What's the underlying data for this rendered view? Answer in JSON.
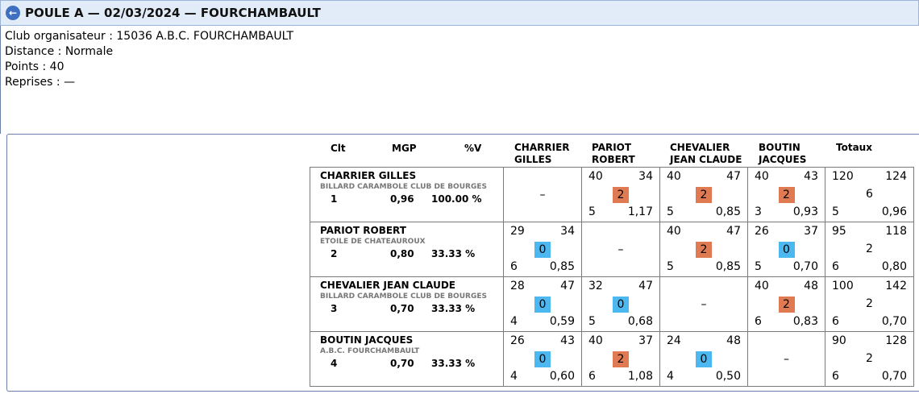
{
  "header": {
    "title": "POULE A — 02/03/2024 — FOURCHAMBAULT",
    "back_icon": "back-arrow-icon"
  },
  "info": {
    "club": "Club organisateur : 15036 A.B.C. FOURCHAMBAULT",
    "distance": "Distance : Normale",
    "points": "Points : 40",
    "reprises": "Reprises : —"
  },
  "columns": {
    "clt": "Clt",
    "mgp": "MGP",
    "pct": "%V",
    "p1_line1": "CHARRIER",
    "p1_line2": "GILLES",
    "p2_line1": "PARIOT",
    "p2_line2": "ROBERT",
    "p3_line1": "CHEVALIER",
    "p3_line2": "JEAN CLAUDE",
    "p4_line1": "BOUTIN",
    "p4_line2": "JACQUES",
    "totaux": "Totaux"
  },
  "dash": "–",
  "rows": [
    {
      "name": "CHARRIER GILLES",
      "club": "BILLARD CARAMBOLE CLUB DE BOURGES",
      "rank": "1",
      "mgp": "0,96",
      "pct": "100.00 %",
      "cells": [
        null,
        {
          "pts": "40",
          "opp": "34",
          "res": "2",
          "type": "win",
          "rep": "5",
          "moy": "1,17"
        },
        {
          "pts": "40",
          "opp": "47",
          "res": "2",
          "type": "win",
          "rep": "5",
          "moy": "0,85"
        },
        {
          "pts": "40",
          "opp": "43",
          "res": "2",
          "type": "win",
          "rep": "3",
          "moy": "0,93"
        }
      ],
      "total": {
        "pts": "120",
        "opp": "124",
        "res": "6",
        "rep": "5",
        "moy": "0,96"
      }
    },
    {
      "name": "PARIOT ROBERT",
      "club": "ETOILE DE CHATEAUROUX",
      "rank": "2",
      "mgp": "0,80",
      "pct": "33.33 %",
      "cells": [
        {
          "pts": "29",
          "opp": "34",
          "res": "0",
          "type": "loss",
          "rep": "6",
          "moy": "0,85"
        },
        null,
        {
          "pts": "40",
          "opp": "47",
          "res": "2",
          "type": "win",
          "rep": "5",
          "moy": "0,85"
        },
        {
          "pts": "26",
          "opp": "37",
          "res": "0",
          "type": "loss",
          "rep": "5",
          "moy": "0,70"
        }
      ],
      "total": {
        "pts": "95",
        "opp": "118",
        "res": "2",
        "rep": "6",
        "moy": "0,80"
      }
    },
    {
      "name": "CHEVALIER JEAN CLAUDE",
      "club": "BILLARD CARAMBOLE CLUB DE BOURGES",
      "rank": "3",
      "mgp": "0,70",
      "pct": "33.33 %",
      "cells": [
        {
          "pts": "28",
          "opp": "47",
          "res": "0",
          "type": "loss",
          "rep": "4",
          "moy": "0,59"
        },
        {
          "pts": "32",
          "opp": "47",
          "res": "0",
          "type": "loss",
          "rep": "5",
          "moy": "0,68"
        },
        null,
        {
          "pts": "40",
          "opp": "48",
          "res": "2",
          "type": "win",
          "rep": "6",
          "moy": "0,83"
        }
      ],
      "total": {
        "pts": "100",
        "opp": "142",
        "res": "2",
        "rep": "6",
        "moy": "0,70"
      }
    },
    {
      "name": "BOUTIN JACQUES",
      "club": "A.B.C. FOURCHAMBAULT",
      "rank": "4",
      "mgp": "0,70",
      "pct": "33.33 %",
      "cells": [
        {
          "pts": "26",
          "opp": "43",
          "res": "0",
          "type": "loss",
          "rep": "4",
          "moy": "0,60"
        },
        {
          "pts": "40",
          "opp": "37",
          "res": "2",
          "type": "win",
          "rep": "6",
          "moy": "1,08"
        },
        {
          "pts": "24",
          "opp": "48",
          "res": "0",
          "type": "loss",
          "rep": "4",
          "moy": "0,50"
        },
        null
      ],
      "total": {
        "pts": "90",
        "opp": "128",
        "res": "2",
        "rep": "6",
        "moy": "0,70"
      }
    }
  ]
}
